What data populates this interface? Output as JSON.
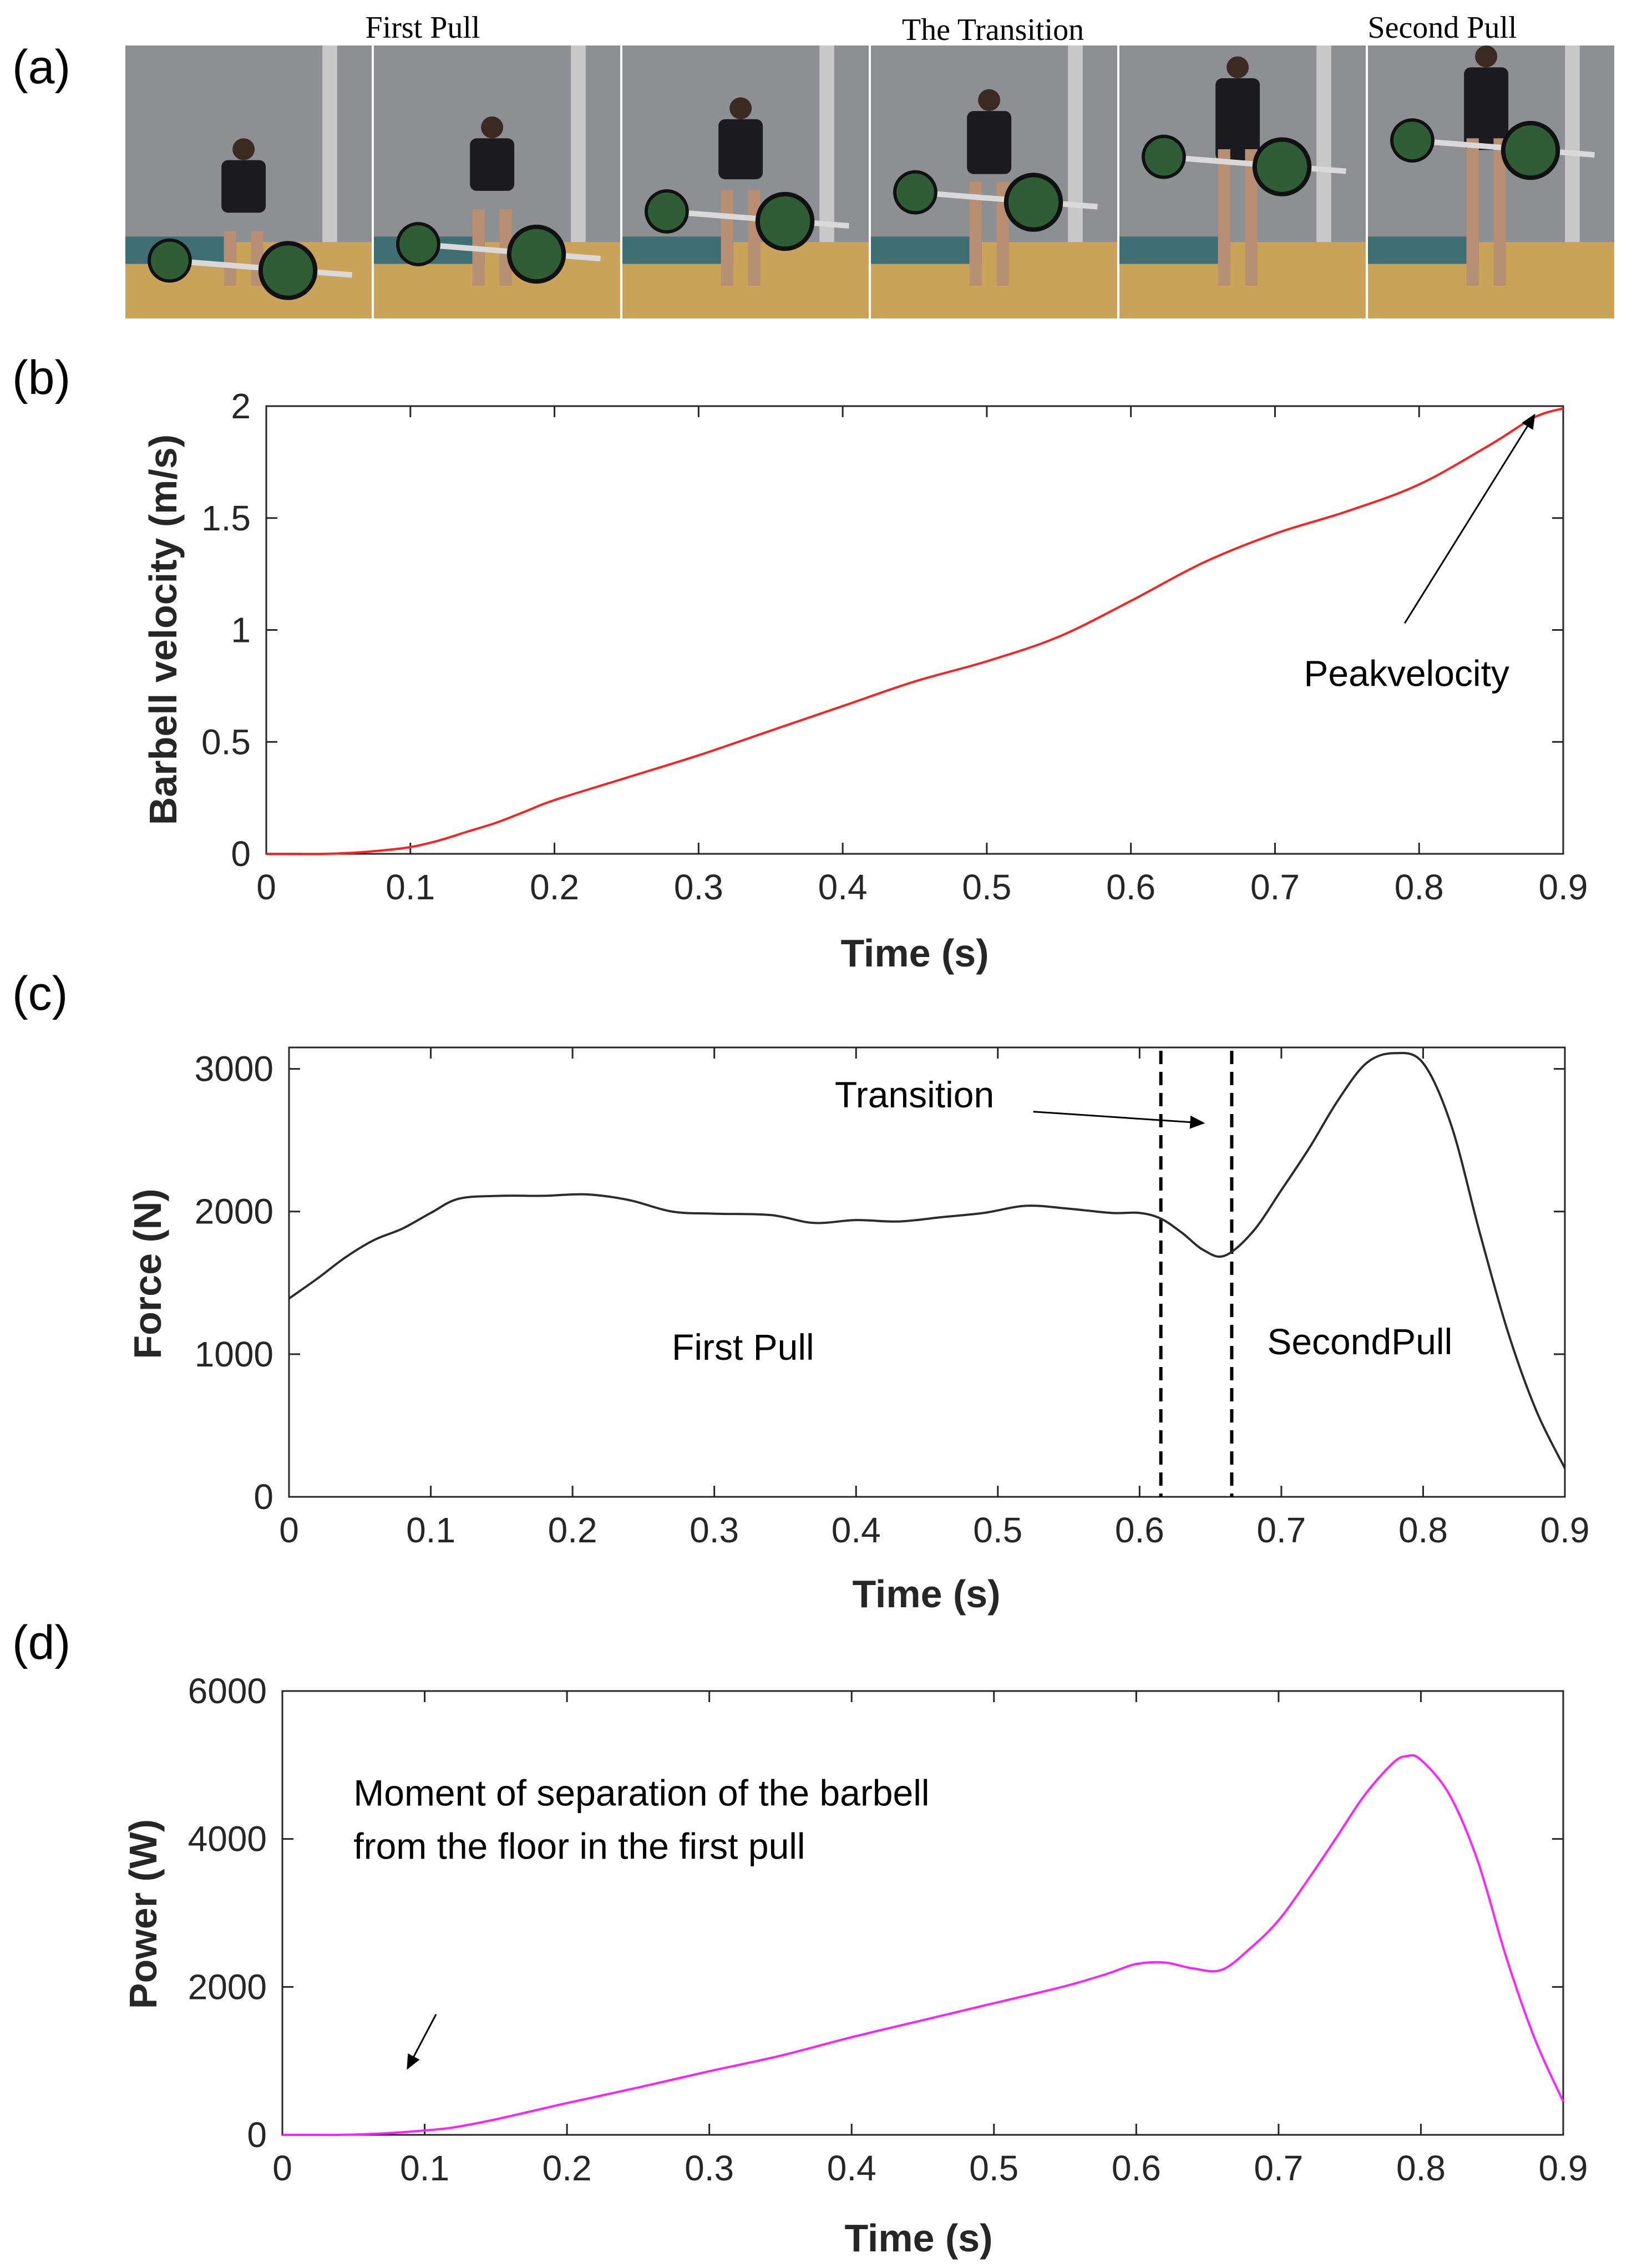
{
  "panels": {
    "a": "(a)",
    "b": "(b)",
    "c": "(c)",
    "d": "(d)"
  },
  "photo_strip": {
    "titles": [
      "First Pull",
      "The Transition",
      "Second Pull"
    ],
    "frame_count": 6,
    "colors": {
      "wall": "#8d8f92",
      "floor": "#c9a35a",
      "mat": "#3f6f73",
      "athlete": "#1b1b1f",
      "plate": "#2f5d35"
    }
  },
  "chart_data": [
    {
      "type": "line",
      "id": "velocity",
      "title": "",
      "xlabel": "Time (s)",
      "ylabel": "Barbell velocity (m/s)",
      "xlim": [
        0,
        0.9
      ],
      "ylim": [
        0,
        2
      ],
      "xticks": [
        0,
        0.1,
        0.2,
        0.3,
        0.4,
        0.5,
        0.6,
        0.7,
        0.8,
        0.9
      ],
      "xtick_labels": [
        "0",
        "0.1",
        "0.2",
        "0.3",
        "0.4",
        "0.5",
        "0.6",
        "0.7",
        "0.8",
        "0.9"
      ],
      "yticks": [
        0,
        0.5,
        1,
        1.5,
        2
      ],
      "ytick_labels": [
        "0",
        "0.5",
        "1",
        "1.5",
        "2"
      ],
      "color": "#ff2020",
      "grid": false,
      "series": [
        {
          "name": "Barbell velocity",
          "x": [
            0,
            0.02,
            0.04,
            0.06,
            0.08,
            0.1,
            0.12,
            0.14,
            0.16,
            0.18,
            0.2,
            0.25,
            0.3,
            0.35,
            0.4,
            0.45,
            0.5,
            0.55,
            0.6,
            0.65,
            0.7,
            0.75,
            0.8,
            0.85,
            0.88,
            0.9
          ],
          "y": [
            0,
            0,
            0,
            0.005,
            0.015,
            0.03,
            0.06,
            0.1,
            0.14,
            0.19,
            0.24,
            0.34,
            0.44,
            0.55,
            0.66,
            0.77,
            0.86,
            0.97,
            1.13,
            1.3,
            1.43,
            1.53,
            1.65,
            1.83,
            1.95,
            1.99
          ]
        }
      ],
      "annotations": [
        {
          "text": "Peakvelocity",
          "x": 0.72,
          "y": 0.75,
          "arrow_to": [
            0.88,
            1.96
          ],
          "arrow_from": [
            0.79,
            1.03
          ]
        }
      ]
    },
    {
      "type": "line",
      "id": "force",
      "title": "",
      "xlabel": "Time (s)",
      "ylabel": "Force (N)",
      "xlim": [
        0,
        0.9
      ],
      "ylim": [
        0,
        3150
      ],
      "xticks": [
        0,
        0.1,
        0.2,
        0.3,
        0.4,
        0.5,
        0.6,
        0.7,
        0.8,
        0.9
      ],
      "xtick_labels": [
        "0",
        "0.1",
        "0.2",
        "0.3",
        "0.4",
        "0.5",
        "0.6",
        "0.7",
        "0.8",
        "0.9"
      ],
      "yticks": [
        0,
        1000,
        2000,
        3000
      ],
      "ytick_labels": [
        "0",
        "1000",
        "2000",
        "3000"
      ],
      "color": "#2b2b2b",
      "grid": false,
      "series": [
        {
          "name": "Force",
          "x": [
            0,
            0.02,
            0.04,
            0.06,
            0.08,
            0.1,
            0.12,
            0.15,
            0.18,
            0.21,
            0.24,
            0.27,
            0.3,
            0.34,
            0.37,
            0.4,
            0.43,
            0.46,
            0.49,
            0.52,
            0.55,
            0.58,
            0.6,
            0.615,
            0.63,
            0.645,
            0.66,
            0.68,
            0.7,
            0.72,
            0.74,
            0.76,
            0.78,
            0.8,
            0.82,
            0.84,
            0.86,
            0.88,
            0.9
          ],
          "y": [
            1390,
            1530,
            1680,
            1800,
            1880,
            1990,
            2090,
            2110,
            2110,
            2120,
            2080,
            2000,
            1985,
            1975,
            1920,
            1940,
            1930,
            1960,
            1990,
            2040,
            2020,
            1990,
            1990,
            1950,
            1850,
            1730,
            1690,
            1860,
            2150,
            2450,
            2780,
            3040,
            3110,
            3040,
            2600,
            1850,
            1150,
            600,
            200
          ]
        }
      ],
      "vlines": [
        0.615,
        0.665
      ],
      "annotations": [
        {
          "text": "Transition",
          "x": 0.385,
          "y": 2730,
          "arrow_from": [
            0.525,
            2700
          ],
          "arrow_to": [
            0.645,
            2620
          ]
        },
        {
          "text": "First Pull",
          "x": 0.27,
          "y": 960
        },
        {
          "text": "SecondPull",
          "x": 0.69,
          "y": 1000
        }
      ]
    },
    {
      "type": "line",
      "id": "power",
      "title": "",
      "xlabel": "Time (s)",
      "ylabel": "Power (W)",
      "xlim": [
        0,
        0.9
      ],
      "ylim": [
        0,
        6000
      ],
      "xticks": [
        0,
        0.1,
        0.2,
        0.3,
        0.4,
        0.5,
        0.6,
        0.7,
        0.8,
        0.9
      ],
      "xtick_labels": [
        "0",
        "0.1",
        "0.2",
        "0.3",
        "0.4",
        "0.5",
        "0.6",
        "0.7",
        "0.8",
        "0.9"
      ],
      "yticks": [
        0,
        2000,
        4000,
        6000
      ],
      "ytick_labels": [
        "0",
        "2000",
        "4000",
        "6000"
      ],
      "color": "#ff22ff",
      "grid": false,
      "series": [
        {
          "name": "Power",
          "x": [
            0,
            0.02,
            0.04,
            0.06,
            0.08,
            0.1,
            0.12,
            0.15,
            0.2,
            0.25,
            0.3,
            0.35,
            0.4,
            0.45,
            0.5,
            0.55,
            0.58,
            0.6,
            0.62,
            0.64,
            0.66,
            0.68,
            0.7,
            0.72,
            0.74,
            0.76,
            0.78,
            0.79,
            0.8,
            0.82,
            0.84,
            0.86,
            0.88,
            0.9
          ],
          "y": [
            0,
            0,
            0,
            10,
            30,
            60,
            100,
            210,
            430,
            640,
            860,
            1070,
            1320,
            1550,
            1780,
            2010,
            2180,
            2310,
            2330,
            2250,
            2230,
            2520,
            2900,
            3430,
            4000,
            4580,
            5020,
            5120,
            5070,
            4600,
            3700,
            2400,
            1300,
            450
          ]
        }
      ],
      "annotations": [
        {
          "text_lines": [
            "Moment  of  separation  of  the  barbell",
            "from  the  floor  in  the  first  pull"
          ],
          "x": 0.05,
          "y": 4450,
          "arrow_from": [
            0.108,
            1630
          ],
          "arrow_to": [
            0.088,
            900
          ]
        }
      ]
    }
  ]
}
